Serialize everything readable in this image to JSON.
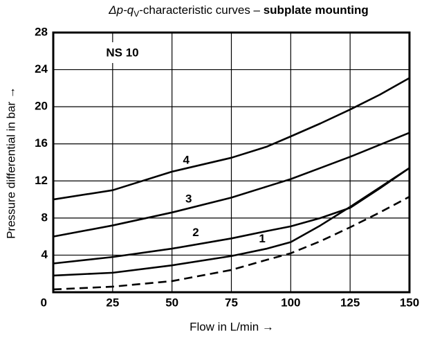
{
  "chart_data": {
    "type": "line",
    "title": {
      "symbol": "Δp-q",
      "subscript": "V",
      "text": "-characteristic curves – ",
      "emphasis": "subplate mounting"
    },
    "annotation": "NS 10",
    "x_label": "Flow in L/min →",
    "y_label": "Pressure differential in bar →",
    "x": [
      0,
      25,
      50,
      75,
      90,
      100,
      112.5,
      125,
      137.5,
      150
    ],
    "series": [
      {
        "name": "4",
        "color": "#000000",
        "values": [
          10,
          11,
          13,
          14.5,
          15.7,
          16.8,
          18.2,
          19.7,
          21.3,
          23.1
        ]
      },
      {
        "name": "3",
        "color": "#000000",
        "values": [
          6,
          7.2,
          8.6,
          10.2,
          11.4,
          12.2,
          13.4,
          14.6,
          15.9,
          17.2
        ]
      },
      {
        "name": "2",
        "color": "#000000",
        "values": [
          3.1,
          3.8,
          4.7,
          5.8,
          6.6,
          7.1,
          8.0,
          9.1,
          11.2,
          13.4
        ]
      },
      {
        "name": "1",
        "color": "#000000",
        "values": [
          1.8,
          2.1,
          2.9,
          3.9,
          4.7,
          5.4,
          7.2,
          9.2,
          11.3,
          13.4
        ]
      },
      {
        "color": "#000000",
        "dashed": true,
        "values": [
          0.3,
          0.6,
          1.2,
          2.4,
          3.5,
          4.2,
          5.5,
          7.0,
          8.6,
          10.3
        ]
      }
    ],
    "xlim": [
      0,
      150
    ],
    "xticks": [
      0,
      25,
      50,
      75,
      100,
      125,
      150
    ],
    "ylim": [
      0,
      28
    ],
    "yticks": [
      0,
      4,
      8,
      12,
      16,
      20,
      24,
      28
    ],
    "grid": true
  }
}
